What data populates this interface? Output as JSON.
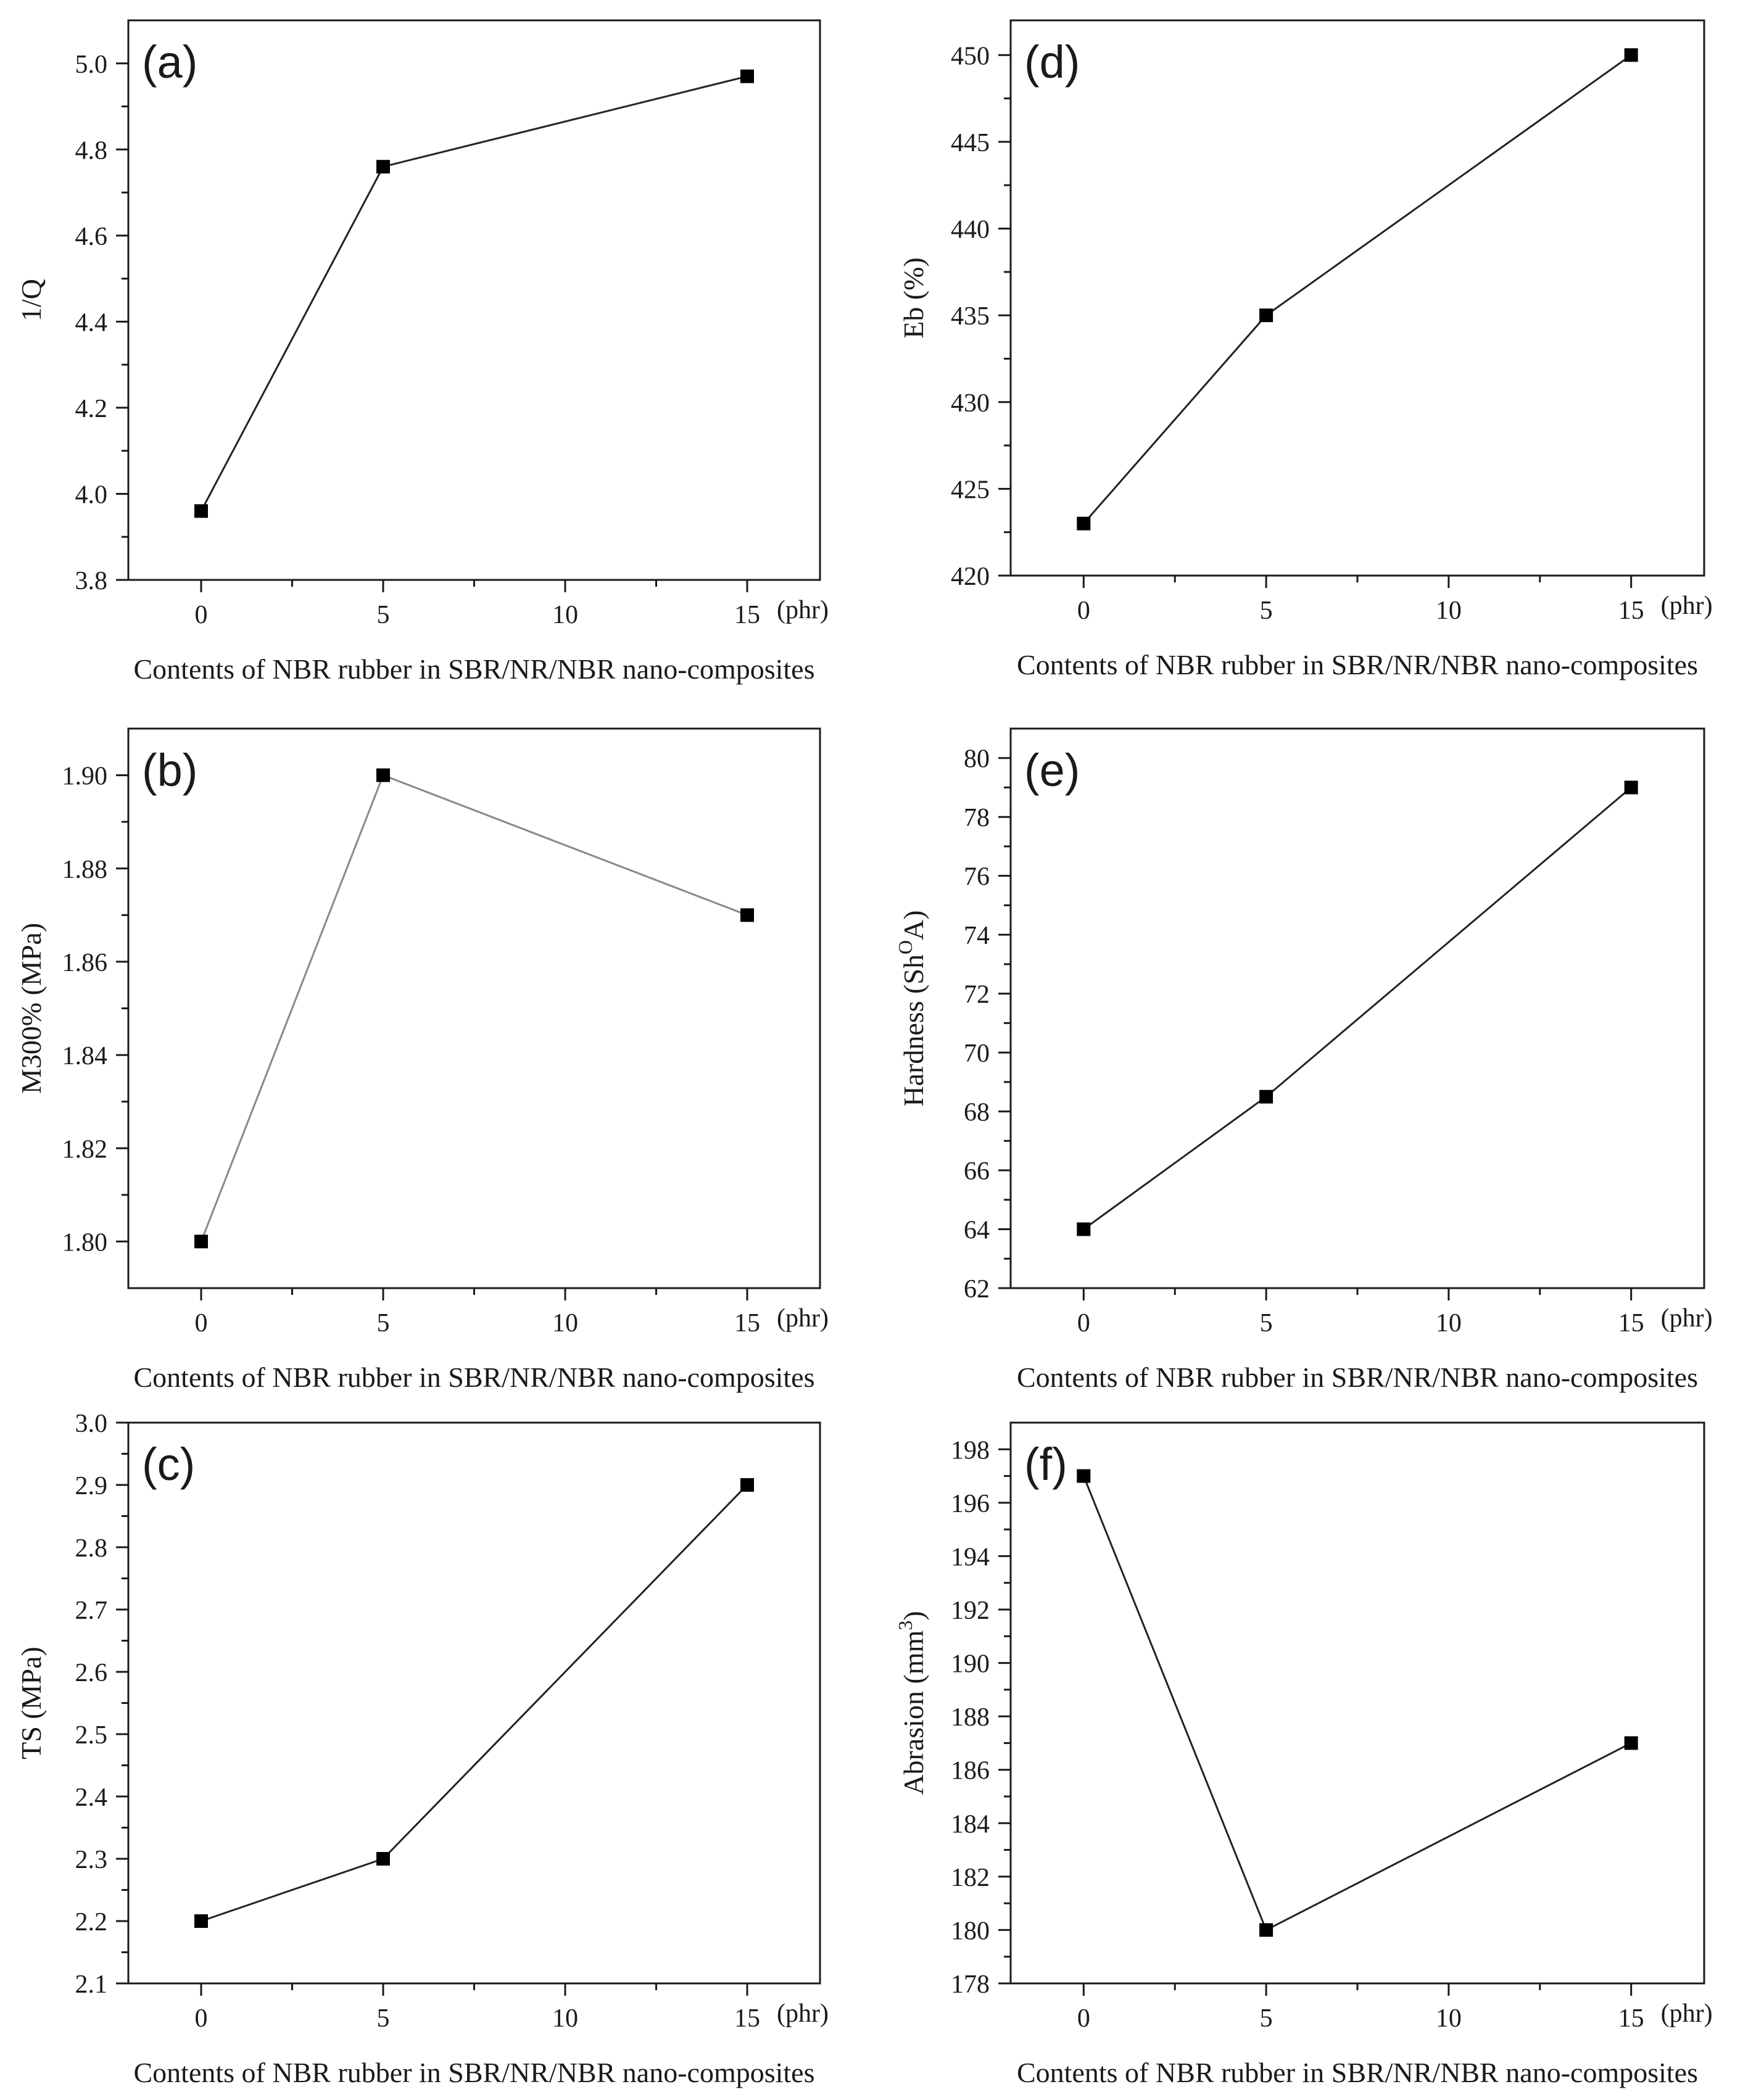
{
  "figure": {
    "chart_data": [
      {
        "type": "line",
        "panel_label": "(a)",
        "title": "",
        "xlabel": "Contents of NBR rubber in SBR/NR/NBR nano-composites",
        "x_unit_label": "(phr)",
        "ylabel": "1/Q",
        "ylabel_sup": "",
        "ylabel_tail": "",
        "x": [
          0,
          5,
          15
        ],
        "y": [
          3.96,
          4.76,
          4.97
        ],
        "xlim": [
          -2,
          17
        ],
        "ylim": [
          3.8,
          5.1
        ],
        "xticks": [
          0,
          5,
          10,
          15
        ],
        "yticks": [
          3.8,
          4.0,
          4.2,
          4.4,
          4.6,
          4.8,
          5.0
        ],
        "ytick_labels": [
          "3.8",
          "4.0",
          "4.2",
          "4.4",
          "4.6",
          "4.8",
          "5.0"
        ],
        "line_color": "#222222",
        "marker_color": "#000000",
        "grid": false
      },
      {
        "type": "line",
        "panel_label": "(b)",
        "title": "",
        "xlabel": "Contents of NBR rubber in SBR/NR/NBR nano-composites",
        "x_unit_label": "(phr)",
        "ylabel": "M300% (MPa)",
        "ylabel_sup": "",
        "ylabel_tail": "",
        "x": [
          0,
          5,
          15
        ],
        "y": [
          1.8,
          1.9,
          1.87
        ],
        "xlim": [
          -2,
          17
        ],
        "ylim": [
          1.79,
          1.91
        ],
        "xticks": [
          0,
          5,
          10,
          15
        ],
        "yticks": [
          1.8,
          1.82,
          1.84,
          1.86,
          1.88,
          1.9
        ],
        "ytick_labels": [
          "1.80",
          "1.82",
          "1.84",
          "1.86",
          "1.88",
          "1.90"
        ],
        "line_color": "#888888",
        "marker_color": "#000000",
        "grid": false
      },
      {
        "type": "line",
        "panel_label": "(c)",
        "title": "",
        "xlabel": "Contents of NBR rubber in SBR/NR/NBR nano-composites",
        "x_unit_label": "(phr)",
        "ylabel": "TS (MPa)",
        "ylabel_sup": "",
        "ylabel_tail": "",
        "x": [
          0,
          5,
          15
        ],
        "y": [
          2.2,
          2.3,
          2.9
        ],
        "xlim": [
          -2,
          17
        ],
        "ylim": [
          2.1,
          3.0
        ],
        "xticks": [
          0,
          5,
          10,
          15
        ],
        "yticks": [
          2.1,
          2.2,
          2.3,
          2.4,
          2.5,
          2.6,
          2.7,
          2.8,
          2.9,
          3.0
        ],
        "ytick_labels": [
          "2.1",
          "2.2",
          "2.3",
          "2.4",
          "2.5",
          "2.6",
          "2.7",
          "2.8",
          "2.9",
          "3.0"
        ],
        "line_color": "#222222",
        "marker_color": "#000000",
        "grid": false
      },
      {
        "type": "line",
        "panel_label": "(d)",
        "title": "",
        "xlabel": "Contents of NBR rubber in SBR/NR/NBR nano-composites",
        "x_unit_label": "(phr)",
        "ylabel": "Eb (%)",
        "ylabel_sup": "",
        "ylabel_tail": "",
        "x": [
          0,
          5,
          15
        ],
        "y": [
          423,
          435,
          450
        ],
        "xlim": [
          -2,
          17
        ],
        "ylim": [
          420,
          452
        ],
        "xticks": [
          0,
          5,
          10,
          15
        ],
        "yticks": [
          420,
          425,
          430,
          435,
          440,
          445,
          450
        ],
        "ytick_labels": [
          "420",
          "425",
          "430",
          "435",
          "440",
          "445",
          "450"
        ],
        "line_color": "#222222",
        "marker_color": "#000000",
        "grid": false
      },
      {
        "type": "line",
        "panel_label": "(e)",
        "title": "",
        "xlabel": "Contents of NBR rubber in SBR/NR/NBR nano-composites",
        "x_unit_label": "(phr)",
        "ylabel": "Hardness (Sh",
        "ylabel_sup": "O",
        "ylabel_tail": "A)",
        "x": [
          0,
          5,
          15
        ],
        "y": [
          64,
          68.5,
          79
        ],
        "xlim": [
          -2,
          17
        ],
        "ylim": [
          62,
          81
        ],
        "xticks": [
          0,
          5,
          10,
          15
        ],
        "yticks": [
          62,
          64,
          66,
          68,
          70,
          72,
          74,
          76,
          78,
          80
        ],
        "ytick_labels": [
          "62",
          "64",
          "66",
          "68",
          "70",
          "72",
          "74",
          "76",
          "78",
          "80"
        ],
        "line_color": "#222222",
        "marker_color": "#000000",
        "grid": false
      },
      {
        "type": "line",
        "panel_label": "(f)",
        "title": "",
        "xlabel": "Contents of NBR rubber in SBR/NR/NBR nano-composites",
        "x_unit_label": "(phr)",
        "ylabel": "Abrasion (mm",
        "ylabel_sup": "3",
        "ylabel_tail": ")",
        "x": [
          0,
          5,
          15
        ],
        "y": [
          197,
          180,
          187
        ],
        "xlim": [
          -2,
          17
        ],
        "ylim": [
          178,
          199
        ],
        "xticks": [
          0,
          5,
          10,
          15
        ],
        "yticks": [
          178,
          180,
          182,
          184,
          186,
          188,
          190,
          192,
          194,
          196,
          198
        ],
        "ytick_labels": [
          "178",
          "180",
          "182",
          "184",
          "186",
          "188",
          "190",
          "192",
          "194",
          "196",
          "198"
        ],
        "line_color": "#222222",
        "marker_color": "#000000",
        "grid": false
      }
    ]
  }
}
